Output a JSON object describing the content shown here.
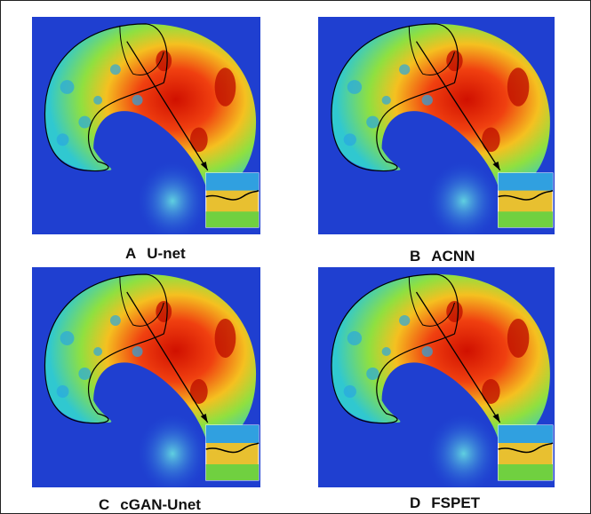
{
  "panels": [
    {
      "letter": "A",
      "label": "U-net"
    },
    {
      "letter": "B",
      "label": "ACNN"
    },
    {
      "letter": "C",
      "label": "cGAN-Unet"
    },
    {
      "letter": "D",
      "label": "FSPET"
    }
  ]
}
